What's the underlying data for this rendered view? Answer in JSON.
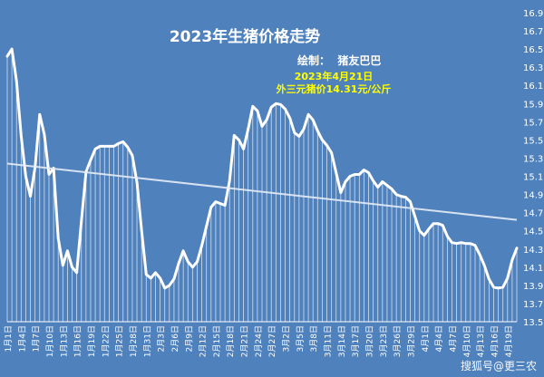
{
  "watermark": "搜狐号@更三农",
  "chart_data": {
    "type": "area",
    "title": "2023年生猪价格走势",
    "credit": "绘制：  猪友巴巴",
    "annotation": {
      "date": "2023年4月21日",
      "text": "外三元猪价14.31元/公斤"
    },
    "ylim": [
      13.5,
      16.9
    ],
    "yticks": [
      13.5,
      13.7,
      13.9,
      14.1,
      14.3,
      14.5,
      14.7,
      14.9,
      15.1,
      15.3,
      15.5,
      15.7,
      15.9,
      16.1,
      16.3,
      16.5,
      16.7,
      16.9
    ],
    "xticks": [
      "1月1日",
      "1月4日",
      "1月7日",
      "1月10日",
      "1月13日",
      "1月16日",
      "1月19日",
      "1月22日",
      "1月25日",
      "1月28日",
      "1月31日",
      "2月3日",
      "2月6日",
      "2月9日",
      "2月12日",
      "2月15日",
      "2月18日",
      "2月21日",
      "2月24日",
      "2月27日",
      "3月2日",
      "3月5日",
      "3月8日",
      "3月11日",
      "3月14日",
      "3月17日",
      "3月20日",
      "3月23日",
      "3月26日",
      "3月29日",
      "4月1日",
      "4月4日",
      "4月7日",
      "4月10日",
      "4月13日",
      "4月16日",
      "4月19日"
    ],
    "values": [
      16.42,
      16.5,
      16.15,
      15.55,
      15.1,
      14.88,
      15.2,
      15.78,
      15.56,
      15.12,
      15.19,
      14.42,
      14.12,
      14.28,
      14.1,
      14.04,
      14.6,
      15.15,
      15.28,
      15.4,
      15.43,
      15.43,
      15.43,
      15.43,
      15.46,
      15.48,
      15.42,
      15.33,
      15.03,
      14.5,
      14.02,
      13.98,
      14.04,
      13.98,
      13.87,
      13.9,
      13.97,
      14.14,
      14.28,
      14.16,
      14.1,
      14.16,
      14.34,
      14.55,
      14.76,
      14.82,
      14.8,
      14.78,
      15.05,
      15.55,
      15.5,
      15.4,
      15.62,
      15.87,
      15.82,
      15.65,
      15.72,
      15.86,
      15.9,
      15.89,
      15.84,
      15.74,
      15.58,
      15.54,
      15.62,
      15.78,
      15.72,
      15.6,
      15.5,
      15.44,
      15.36,
      15.14,
      14.92,
      15.04,
      15.1,
      15.12,
      15.12,
      15.17,
      15.14,
      15.05,
      14.98,
      15.04,
      15.0,
      14.96,
      14.9,
      14.88,
      14.87,
      14.82,
      14.66,
      14.5,
      14.45,
      14.52,
      14.58,
      14.58,
      14.56,
      14.44,
      14.37,
      14.36,
      14.37,
      14.36,
      14.36,
      14.34,
      14.24,
      14.12,
      13.97,
      13.88,
      13.87,
      13.88,
      13.98,
      14.18,
      14.31
    ],
    "trendline": {
      "start": 15.24,
      "end": 14.62
    },
    "grid": false
  }
}
